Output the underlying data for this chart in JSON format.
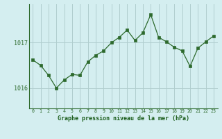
{
  "x": [
    0,
    1,
    2,
    3,
    4,
    5,
    6,
    7,
    8,
    9,
    10,
    11,
    12,
    13,
    14,
    15,
    16,
    17,
    18,
    19,
    20,
    21,
    22,
    23
  ],
  "y": [
    1016.62,
    1016.5,
    1016.28,
    1016.0,
    1016.18,
    1016.3,
    1016.28,
    1016.58,
    1016.72,
    1016.82,
    1017.0,
    1017.12,
    1017.28,
    1017.05,
    1017.22,
    1017.62,
    1017.12,
    1017.02,
    1016.9,
    1016.82,
    1016.48,
    1016.88,
    1017.02,
    1017.15
  ],
  "line_color": "#2d6a2d",
  "marker_color": "#2d6a2d",
  "bg_color": "#d4eef0",
  "grid_color": "#b0cece",
  "xlabel": "Graphe pression niveau de la mer (hPa)",
  "xlabel_color": "#1a5c1a",
  "ytick_labels": [
    "1016",
    "1017"
  ],
  "yticks": [
    1016,
    1017
  ],
  "ylim": [
    1015.55,
    1017.85
  ],
  "xlim": [
    -0.5,
    23.5
  ],
  "xtick_labels": [
    "0",
    "1",
    "2",
    "3",
    "4",
    "5",
    "6",
    "7",
    "8",
    "9",
    "10",
    "11",
    "12",
    "13",
    "14",
    "15",
    "16",
    "17",
    "18",
    "19",
    "20",
    "21",
    "22",
    "23"
  ]
}
